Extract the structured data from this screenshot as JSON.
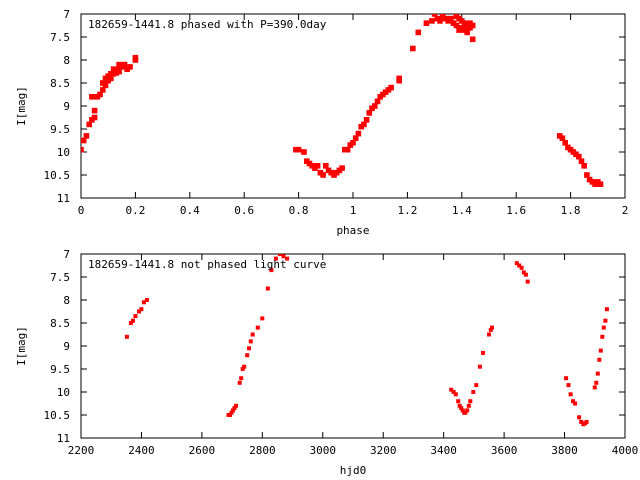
{
  "chart_data": [
    {
      "type": "scatter",
      "title": "182659-1441.8 phased with P=390.0day",
      "xlabel": "phase",
      "ylabel": "I[mag]",
      "xlim": [
        0,
        2
      ],
      "ylim": [
        7,
        11
      ],
      "y_inverted": true,
      "x_ticks": [
        "0",
        "0.2",
        "0.4",
        "0.6",
        "0.8",
        "1",
        "1.2",
        "1.4",
        "1.6",
        "1.8",
        "2"
      ],
      "y_ticks": [
        "7",
        "7.5",
        "8",
        "8.5",
        "9",
        "9.5",
        "10",
        "10.5",
        "11"
      ],
      "grid": false,
      "marker_color": "#ff0000",
      "series": [
        {
          "x": [
            0.0,
            0.01,
            0.02,
            0.03,
            0.04,
            0.04,
            0.05,
            0.05,
            0.06,
            0.07,
            0.08,
            0.08,
            0.09,
            0.09,
            0.1,
            0.1,
            0.11,
            0.11,
            0.12,
            0.12,
            0.13,
            0.13,
            0.14,
            0.14,
            0.15,
            0.16,
            0.17,
            0.18,
            0.2,
            0.2,
            0.79,
            0.8,
            0.82,
            0.83,
            0.84,
            0.85,
            0.86,
            0.87,
            0.88,
            0.89,
            0.9,
            0.91,
            0.92,
            0.93,
            0.94,
            0.95,
            0.96,
            0.97,
            0.98,
            0.99,
            1.0,
            1.01,
            1.02,
            1.03,
            1.04,
            1.05,
            1.06,
            1.07,
            1.08,
            1.09,
            1.1,
            1.11,
            1.12,
            1.13,
            1.14,
            1.17,
            1.17,
            1.22,
            1.24,
            1.27,
            1.29,
            1.3,
            1.31,
            1.32,
            1.33,
            1.34,
            1.35,
            1.36,
            1.37,
            1.38,
            1.38,
            1.39,
            1.39,
            1.4,
            1.4,
            1.41,
            1.41,
            1.42,
            1.42,
            1.43,
            1.43,
            1.44,
            1.44,
            1.76,
            1.77,
            1.78,
            1.79,
            1.8,
            1.81,
            1.82,
            1.83,
            1.84,
            1.85,
            1.86,
            1.87,
            1.88,
            1.89,
            1.9,
            1.91
          ],
          "y": [
            9.95,
            9.75,
            9.65,
            9.4,
            9.3,
            8.8,
            9.25,
            9.1,
            8.8,
            8.75,
            8.65,
            8.5,
            8.55,
            8.4,
            8.45,
            8.35,
            8.4,
            8.3,
            8.3,
            8.2,
            8.28,
            8.2,
            8.25,
            8.1,
            8.15,
            8.1,
            8.2,
            8.15,
            8.0,
            7.95,
            9.95,
            9.95,
            10.0,
            10.2,
            10.25,
            10.3,
            10.35,
            10.3,
            10.45,
            10.5,
            10.3,
            10.4,
            10.45,
            10.5,
            10.45,
            10.4,
            10.35,
            9.95,
            9.95,
            9.85,
            9.8,
            9.7,
            9.6,
            9.45,
            9.4,
            9.3,
            9.15,
            9.05,
            9.0,
            8.9,
            8.8,
            8.75,
            8.7,
            8.65,
            8.6,
            8.45,
            8.4,
            7.75,
            7.4,
            7.2,
            7.15,
            7.0,
            7.1,
            7.15,
            7.05,
            7.1,
            7.15,
            7.1,
            7.2,
            7.05,
            7.25,
            7.1,
            7.35,
            7.15,
            7.3,
            7.2,
            7.35,
            7.25,
            7.4,
            7.2,
            7.3,
            7.25,
            7.55,
            9.65,
            9.7,
            9.8,
            9.9,
            9.95,
            10.0,
            10.05,
            10.1,
            10.2,
            10.3,
            10.5,
            10.6,
            10.65,
            10.7,
            10.65,
            10.7
          ]
        }
      ]
    },
    {
      "type": "scatter",
      "title": "182659-1441.8 not phased light curve",
      "xlabel": "hjd0",
      "ylabel": "I[mag]",
      "xlim": [
        2200,
        4000
      ],
      "ylim": [
        7,
        11
      ],
      "y_inverted": true,
      "x_ticks": [
        "2200",
        "2400",
        "2600",
        "2800",
        "3000",
        "3200",
        "3400",
        "3600",
        "3800",
        "4000"
      ],
      "y_ticks": [
        "7",
        "7.5",
        "8",
        "8.5",
        "9",
        "9.5",
        "10",
        "10.5",
        "11"
      ],
      "grid": false,
      "marker_color": "#ff0000",
      "series": [
        {
          "x": [
            2352,
            2365,
            2372,
            2380,
            2392,
            2400,
            2408,
            2418,
            2688,
            2693,
            2698,
            2703,
            2708,
            2713,
            2725,
            2730,
            2735,
            2740,
            2750,
            2756,
            2762,
            2768,
            2785,
            2800,
            2818,
            2830,
            2845,
            2858,
            2870,
            2882,
            3425,
            3433,
            3440,
            3448,
            3453,
            3458,
            3463,
            3468,
            3472,
            3478,
            3483,
            3488,
            3498,
            3508,
            3520,
            3530,
            3550,
            3556,
            3560,
            3642,
            3650,
            3658,
            3665,
            3672,
            3678,
            3805,
            3813,
            3820,
            3828,
            3835,
            3848,
            3855,
            3862,
            3868,
            3873,
            3900,
            3905,
            3910,
            3915,
            3920,
            3925,
            3930,
            3935,
            3940
          ],
          "y": [
            8.8,
            8.5,
            8.45,
            8.35,
            8.25,
            8.2,
            8.05,
            8.0,
            10.5,
            10.5,
            10.45,
            10.4,
            10.35,
            10.3,
            9.8,
            9.7,
            9.5,
            9.45,
            9.2,
            9.05,
            8.9,
            8.75,
            8.6,
            8.4,
            7.75,
            7.35,
            7.1,
            7.0,
            7.05,
            7.1,
            9.95,
            10.0,
            10.05,
            10.2,
            10.3,
            10.35,
            10.4,
            10.45,
            10.45,
            10.4,
            10.3,
            10.2,
            10.0,
            9.85,
            9.45,
            9.15,
            8.75,
            8.65,
            8.6,
            7.2,
            7.25,
            7.3,
            7.4,
            7.45,
            7.6,
            9.7,
            9.85,
            10.05,
            10.2,
            10.25,
            10.55,
            10.65,
            10.7,
            10.68,
            10.65,
            9.9,
            9.8,
            9.6,
            9.3,
            9.1,
            8.8,
            8.6,
            8.45,
            8.2
          ]
        }
      ]
    }
  ]
}
